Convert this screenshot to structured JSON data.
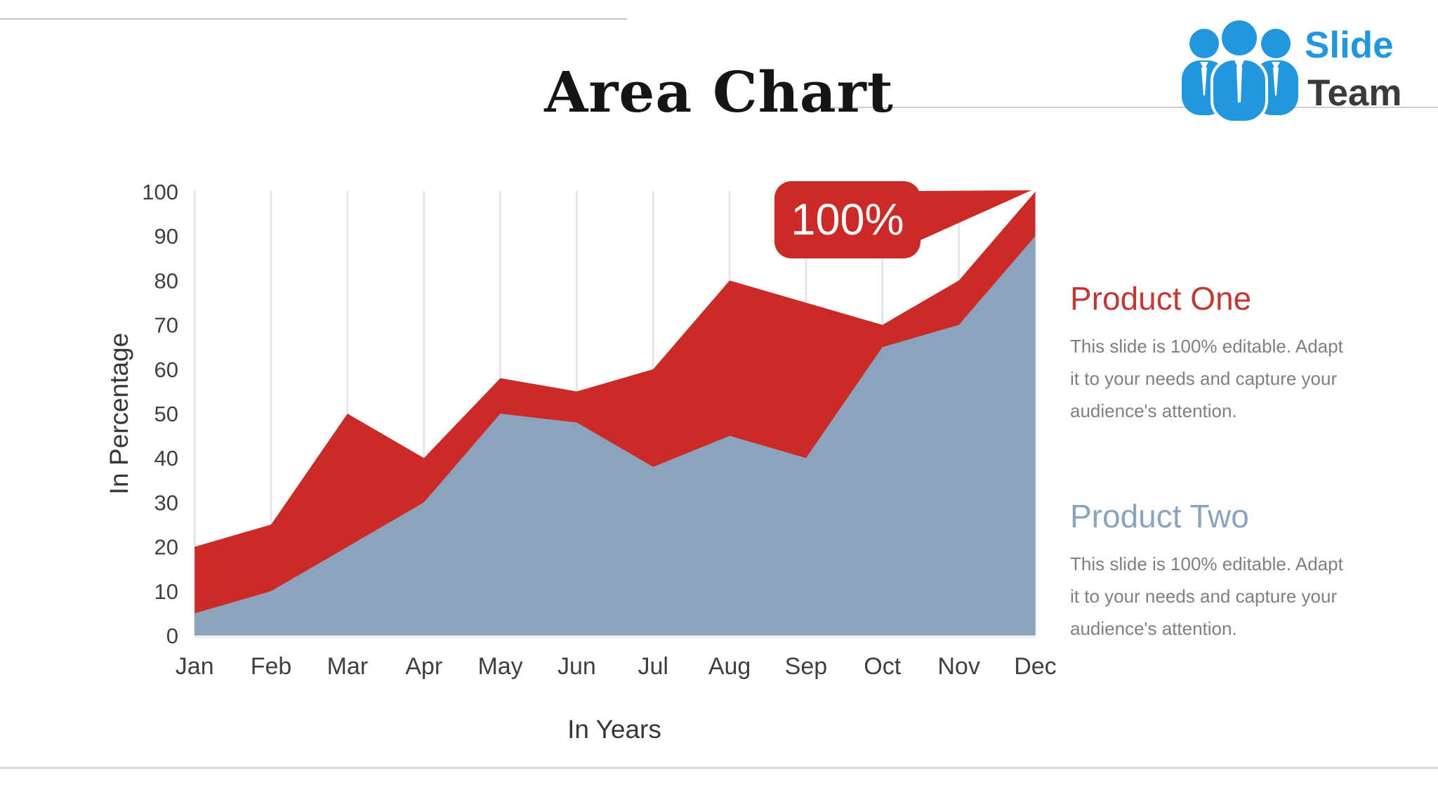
{
  "slide": {
    "title": "Area Chart",
    "logo": {
      "line1": "Slide",
      "line2": "Team"
    },
    "products": [
      {
        "name": "Product One",
        "lines": [
          "This slide is 100% editable. Adapt",
          "it to your needs and capture your",
          "audience's attention."
        ]
      },
      {
        "name": "Product Two",
        "lines": [
          "This slide is 100% editable. Adapt",
          "it to your needs and capture your",
          "audience's attention."
        ]
      }
    ]
  },
  "chart_data": {
    "type": "area",
    "title": "Area Chart",
    "xlabel": "In Years",
    "ylabel": "In Percentage",
    "categories": [
      "Jan",
      "Feb",
      "Mar",
      "Apr",
      "May",
      "Jun",
      "Jul",
      "Aug",
      "Sep",
      "Oct",
      "Nov",
      "Dec"
    ],
    "series": [
      {
        "name": "Product One",
        "color": "#cb2b27",
        "values": [
          20,
          25,
          50,
          40,
          58,
          55,
          60,
          80,
          75,
          70,
          80,
          100
        ]
      },
      {
        "name": "Product Two",
        "color": "#8ba3bc",
        "values": [
          5,
          10,
          20,
          30,
          50,
          48,
          38,
          45,
          40,
          65,
          70,
          90
        ]
      }
    ],
    "ylim": [
      0,
      100
    ],
    "ytick_step": 10,
    "grid": "vertical-only",
    "legend_position": "none",
    "annotation": {
      "text": "100%",
      "month": "Dec",
      "value": 100
    },
    "colors": {
      "grid": "#e6e6e6",
      "tick_label": "#3f3f3f",
      "callout_bg": "#cb2b27",
      "callout_text": "#ffffff",
      "logo_blue": "#2397dd"
    }
  }
}
